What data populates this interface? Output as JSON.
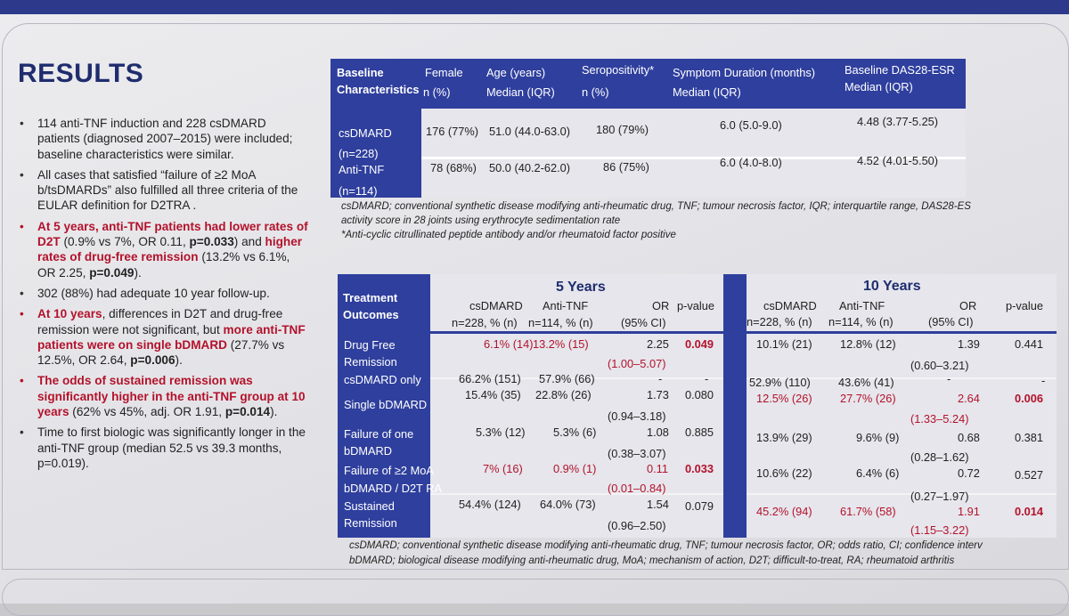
{
  "title": "RESULTS",
  "bullets": [
    {
      "parts": [
        {
          "t": "114 anti-TNF induction and 228 csDMARD patients (diagnosed 2007–2015) were included; baseline characteristics were similar.",
          "s": "n"
        }
      ]
    },
    {
      "parts": [
        {
          "t": "All cases that satisfied “failure of ≥2 MoA b/tsDMARDs” also fulfilled all three criteria of the EULAR definition for D2TRA .",
          "s": "n"
        }
      ]
    },
    {
      "hl": true,
      "parts": [
        {
          "t": "At 5 years, anti-TNF patients had lower rates of D2T",
          "s": "r"
        },
        {
          "t": " (0.9% vs 7%, OR 0.11, ",
          "s": "n"
        },
        {
          "t": "p=0.033",
          "s": "b"
        },
        {
          "t": ") and ",
          "s": "n"
        },
        {
          "t": "higher rates of drug-free remission",
          "s": "r"
        },
        {
          "t": " (13.2% vs 6.1%, OR 2.25, ",
          "s": "n"
        },
        {
          "t": "p=0.049",
          "s": "b"
        },
        {
          "t": ").",
          "s": "n"
        }
      ]
    },
    {
      "parts": [
        {
          "t": "302 (88%) had adequate 10 year follow-up.",
          "s": "n"
        }
      ]
    },
    {
      "hl": true,
      "parts": [
        {
          "t": "At 10 years",
          "s": "r"
        },
        {
          "t": ", differences in D2T and drug-free remission were not significant, but ",
          "s": "n"
        },
        {
          "t": "more anti-TNF patients were on single bDMARD",
          "s": "r"
        },
        {
          "t": " (27.7% vs 12.5%, OR 2.64, ",
          "s": "n"
        },
        {
          "t": "p=0.006",
          "s": "b"
        },
        {
          "t": ").",
          "s": "n"
        }
      ]
    },
    {
      "hl": true,
      "parts": [
        {
          "t": "The odds of sustained remission was significantly higher in the anti-TNF group at 10 years",
          "s": "r"
        },
        {
          "t": " (62% vs 45%, adj. OR 1.91, ",
          "s": "n"
        },
        {
          "t": "p=0.014",
          "s": "b"
        },
        {
          "t": ").",
          "s": "n"
        }
      ]
    },
    {
      "parts": [
        {
          "t": "Time to first biologic was significantly longer in the anti-TNF group (median 52.5 vs 39.3 months, p=0.019).",
          "s": "n"
        }
      ]
    }
  ],
  "baseline_table": {
    "header": {
      "col0_line1": "Baseline",
      "col0_line2": "Characteristics",
      "female_line1": "Female",
      "female_line2": "n (%)",
      "age_line1": "Age (years)",
      "age_line2": "Median (IQR)",
      "sero_line1": "Seropositivity*",
      "sero_line2": "n (%)",
      "symptom_line1": "Symptom Duration (months)",
      "symptom_line2": "Median (IQR)",
      "das_line1": "Baseline DAS28-ESR",
      "das_line2": "Median (IQR)"
    },
    "rows": [
      {
        "label": "csDMARD",
        "n": "(n=228)",
        "female": "176 (77%)",
        "age": "51.0 (44.0-63.0)",
        "sero": "180 (79%)",
        "symptom": "6.0 (5.0-9.0)",
        "das": "4.48 (3.77-5.25)"
      },
      {
        "label": "Anti-TNF",
        "n": "(n=114)",
        "female": "78 (68%)",
        "age": "50.0 (40.2-62.0)",
        "sero": "86 (75%)",
        "symptom": "6.0 (4.0-8.0)",
        "das": "4.52 (4.01-5.50)"
      }
    ],
    "notes": [
      "csDMARD; conventional synthetic disease modifying anti-rheumatic drug, TNF; tumour necrosis factor, IQR; interquartile range, DAS28-ES",
      "activity score in 28 joints using erythrocyte sedimentation rate",
      "*Anti-cyclic citrullinated peptide antibody and/or rheumatoid factor positive"
    ]
  },
  "outcomes_table": {
    "corner_line1": "Treatment",
    "corner_line2": "Outcomes",
    "year5": "5 Years",
    "year10": "10 Years",
    "col_csdmard": "csDMARD",
    "col_antitnf": "Anti-TNF",
    "col_or": "OR",
    "col_pvalue": "p-value",
    "sub_csdmard": "n=228, % (n)",
    "sub_antitnf": "n=114, % (n)",
    "sub_ci": "(95% CI)",
    "sub_ci10": "(95% CI)",
    "rows": [
      {
        "label1": "Drug Free",
        "label2": "Remission",
        "c5": "6.1% (14)",
        "a5": "13.2% (15)",
        "or5": "2.25",
        "ci5": "(1.00–5.07)",
        "p5": "0.049",
        "c10": "10.1% (21)",
        "a10": "12.8% (12)",
        "or10": "1.39",
        "ci10": "(0.60–3.21)",
        "p10": "0.441"
      },
      {
        "label1": "csDMARD only",
        "label2": "",
        "c5": "66.2% (151)",
        "a5": "57.9% (66)",
        "or5": "-",
        "ci5": "",
        "p5": "-",
        "c10": "52.9% (110)",
        "a10": "43.6% (41)",
        "or10": "-",
        "ci10": "",
        "p10": "-"
      },
      {
        "label1": "Single bDMARD",
        "label2": "",
        "c5": "15.4% (35)",
        "a5": "22.8% (26)",
        "or5": "1.73",
        "ci5": "(0.94–3.18)",
        "p5": "0.080",
        "c10": "12.5% (26)",
        "a10": "27.7% (26)",
        "or10": "2.64",
        "ci10": "(1.33–5.24)",
        "p10": "0.006"
      },
      {
        "label1": "Failure of one",
        "label2": "bDMARD",
        "c5": "5.3% (12)",
        "a5": "5.3% (6)",
        "or5": "1.08",
        "ci5": "(0.38–3.07)",
        "p5": "0.885",
        "c10": "13.9% (29)",
        "a10": "9.6% (9)",
        "or10": "0.68",
        "ci10": "(0.28–1.62)",
        "p10": "0.381"
      },
      {
        "label1": "Failure of ≥2 MoA",
        "label2": "bDMARD / D2T RA",
        "c5": "7% (16)",
        "a5": "0.9% (1)",
        "or5": "0.11",
        "ci5": "(0.01–0.84)",
        "p5": "0.033",
        "c10": "10.6% (22)",
        "a10": "6.4% (6)",
        "or10": "0.72",
        "ci10": "(0.27–1.97)",
        "p10": "0.527"
      },
      {
        "label1": "Sustained",
        "label2": "Remission",
        "c5": "54.4% (124)",
        "a5": "64.0% (73)",
        "or5": "1.54",
        "ci5": "(0.96–2.50)",
        "p5": "0.079",
        "c10": "45.2% (94)",
        "a10": "61.7% (58)",
        "or10": "1.91",
        "ci10": "(1.15–3.22)",
        "p10": "0.014"
      }
    ],
    "notes": [
      "csDMARD; conventional synthetic disease modifying anti-rheumatic drug, TNF; tumour necrosis factor, OR; odds ratio, CI; confidence interv",
      "bDMARD; biological disease modifying anti-rheumatic drug, MoA; mechanism of action, D2T; difficult-to-treat, RA; rheumatoid arthritis"
    ]
  },
  "colors": {
    "navy": "#2f3f9d",
    "title": "#1f2d6e",
    "highlight": "#b3122b"
  }
}
